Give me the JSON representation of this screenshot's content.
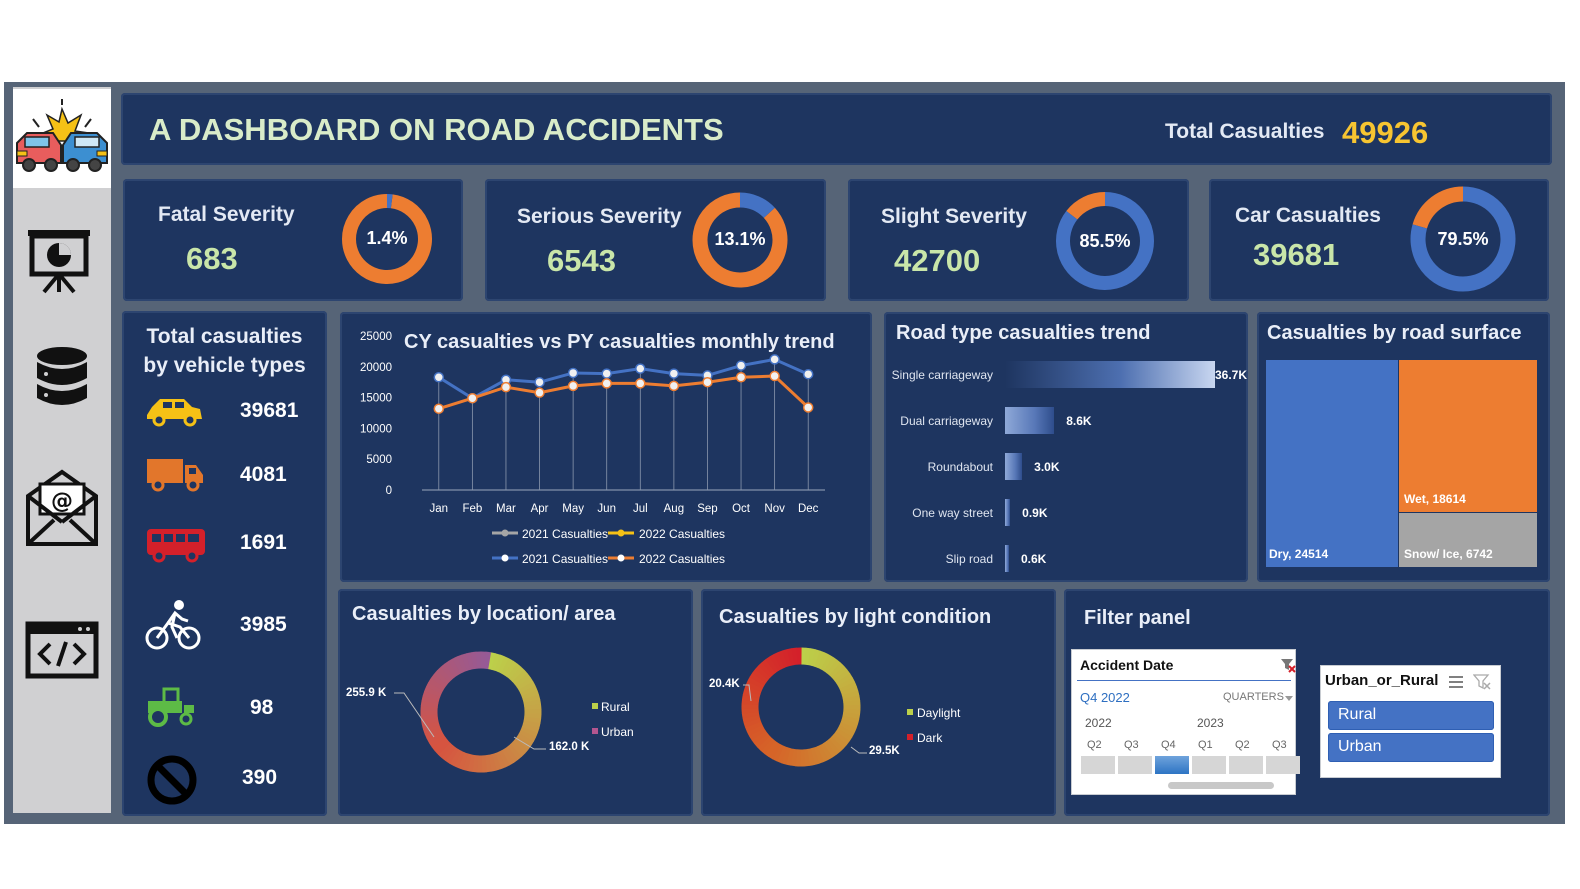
{
  "header": {
    "title": "A DASHBOARD ON ROAD ACCIDENTS",
    "total_label": "Total Casualties",
    "total_value": "49926"
  },
  "sidebar": {
    "icons": [
      "car-crash-logo",
      "presentation-chart-icon",
      "database-icon",
      "email-icon",
      "code-window-icon"
    ]
  },
  "kpis": [
    {
      "name": "Fatal Severity",
      "value": "683",
      "pct_label": "1.4%",
      "pct": 0.014
    },
    {
      "name": "Serious Severity",
      "value": "6543",
      "pct_label": "13.1%",
      "pct": 0.131
    },
    {
      "name": "Slight Severity",
      "value": "42700",
      "pct_label": "85.5%",
      "pct": 0.855
    },
    {
      "name": "Car Casualties",
      "value": "39681",
      "pct_label": "79.5%",
      "pct": 0.795
    }
  ],
  "colors": {
    "accent_orange": "#ed7d31",
    "accent_blue": "#4472c4",
    "panel_bg": "#1e3560",
    "kpi_value": "#c9e6a9",
    "total_value": "#f7c531"
  },
  "vehicles": {
    "title_line1": "Total casualties",
    "title_line2": "by vehicle types",
    "items": [
      {
        "icon": "car-icon",
        "value": "39681"
      },
      {
        "icon": "truck-icon",
        "value": "4081"
      },
      {
        "icon": "bus-icon",
        "value": "1691"
      },
      {
        "icon": "bicycle-icon",
        "value": "3985"
      },
      {
        "icon": "tractor-icon",
        "value": "98"
      },
      {
        "icon": "no-entry-icon",
        "value": "390"
      }
    ]
  },
  "monthly_trend": {
    "title": "CY casualties vs PY casualties monthly trend",
    "legend": {
      "row1": [
        "2021 Casualties",
        "2022 Casualties"
      ],
      "row2": [
        "2021 Casualties",
        "2022 Casualties"
      ]
    }
  },
  "road_type": {
    "title": "Road type casualties trend"
  },
  "road_surface": {
    "title": "Casualties by road surface",
    "labels": {
      "dry": "Dry, 24514",
      "wet": "Wet, 18614",
      "snow": "Snow/ Ice, 6742"
    }
  },
  "location": {
    "title": "Casualties by location/ area",
    "labels": {
      "rural": "255.9 K",
      "urban": "162.0 K"
    },
    "legend": [
      "Rural",
      "Urban"
    ]
  },
  "light": {
    "title": "Casualties by light condition",
    "labels": {
      "dark": "20.4K",
      "daylight": "29.5K"
    },
    "legend": [
      "Daylight",
      "Dark"
    ]
  },
  "filter": {
    "title": "Filter panel",
    "date_slicer": {
      "header": "Accident Date",
      "selection": "Q4 2022",
      "level": "QUARTERS",
      "years": [
        "2022",
        "2023"
      ],
      "quarters": [
        "Q2",
        "Q3",
        "Q4",
        "Q1",
        "Q2",
        "Q3"
      ]
    },
    "area_slicer": {
      "header": "Urban_or_Rural",
      "options": [
        "Rural",
        "Urban"
      ]
    }
  },
  "chart_data": [
    {
      "type": "line",
      "title": "CY casualties vs PY casualties monthly trend",
      "categories": [
        "Jan",
        "Feb",
        "Mar",
        "Apr",
        "May",
        "Jun",
        "Jul",
        "Aug",
        "Sep",
        "Oct",
        "Nov",
        "Dec"
      ],
      "ylim": [
        0,
        25000
      ],
      "yticks": [
        0,
        5000,
        10000,
        15000,
        20000,
        25000
      ],
      "series": [
        {
          "name": "2021 Casualties",
          "color": "#4472c4",
          "values": [
            18300,
            14900,
            17900,
            17500,
            19000,
            18900,
            19700,
            18900,
            18600,
            20200,
            21200,
            18800
          ]
        },
        {
          "name": "2022 Casualties",
          "color": "#ed7d31",
          "values": [
            13200,
            14900,
            16700,
            15800,
            16900,
            17300,
            17300,
            16900,
            17500,
            18300,
            18500,
            13400
          ]
        }
      ]
    },
    {
      "type": "bar",
      "title": "Road type casualties trend",
      "categories": [
        "Single carriageway",
        "Dual carriageway",
        "Roundabout",
        "One way street",
        "Slip road"
      ],
      "values": [
        36.7,
        8.6,
        3.0,
        0.9,
        0.6
      ],
      "value_labels": [
        "36.7K",
        "8.6K",
        "3.0K",
        "0.9K",
        "0.6K"
      ],
      "unit": "K"
    },
    {
      "type": "treemap",
      "title": "Casualties by road surface",
      "categories": [
        "Dry",
        "Wet",
        "Snow/ Ice"
      ],
      "values": [
        24514,
        18614,
        6742
      ]
    },
    {
      "type": "pie",
      "title": "Casualties by location/ area",
      "categories": [
        "Rural",
        "Urban"
      ],
      "values": [
        255.9,
        162.0
      ],
      "unit": "K"
    },
    {
      "type": "pie",
      "title": "Casualties by light condition",
      "categories": [
        "Daylight",
        "Dark"
      ],
      "values": [
        29.5,
        20.4
      ],
      "unit": "K"
    }
  ]
}
